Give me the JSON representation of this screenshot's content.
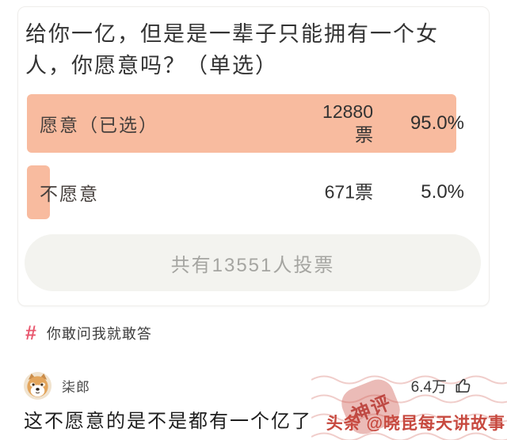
{
  "poll": {
    "question": "给你一亿，但是是一辈子只能拥有一个女人，你愿意吗？（单选）",
    "options": [
      {
        "label": "愿意（已选）",
        "votes": "12880票",
        "percent": "95.0%",
        "fill": 95,
        "selected": true
      },
      {
        "label": "不愿意",
        "votes": "671票",
        "percent": "5.0%",
        "fill": 5,
        "selected": false
      }
    ],
    "total_label": "共有13551人投票",
    "bar_color": "#f8bb9f"
  },
  "topic": {
    "hash_symbol": "#",
    "label": "你敢问我就敢答",
    "accent_color": "#e8566d"
  },
  "comment": {
    "username": "柒郎",
    "like_count": "6.4万",
    "text": "这不愿意的是不是都有一个亿了"
  },
  "watermark": {
    "stamp_text": "神评",
    "credit": "头条 @晓昆每天讲故事",
    "color": "#c7493f"
  },
  "icons": {
    "hash": "hash-icon",
    "like": "thumbs-up-icon",
    "avatar": "shiba-dog-avatar"
  }
}
